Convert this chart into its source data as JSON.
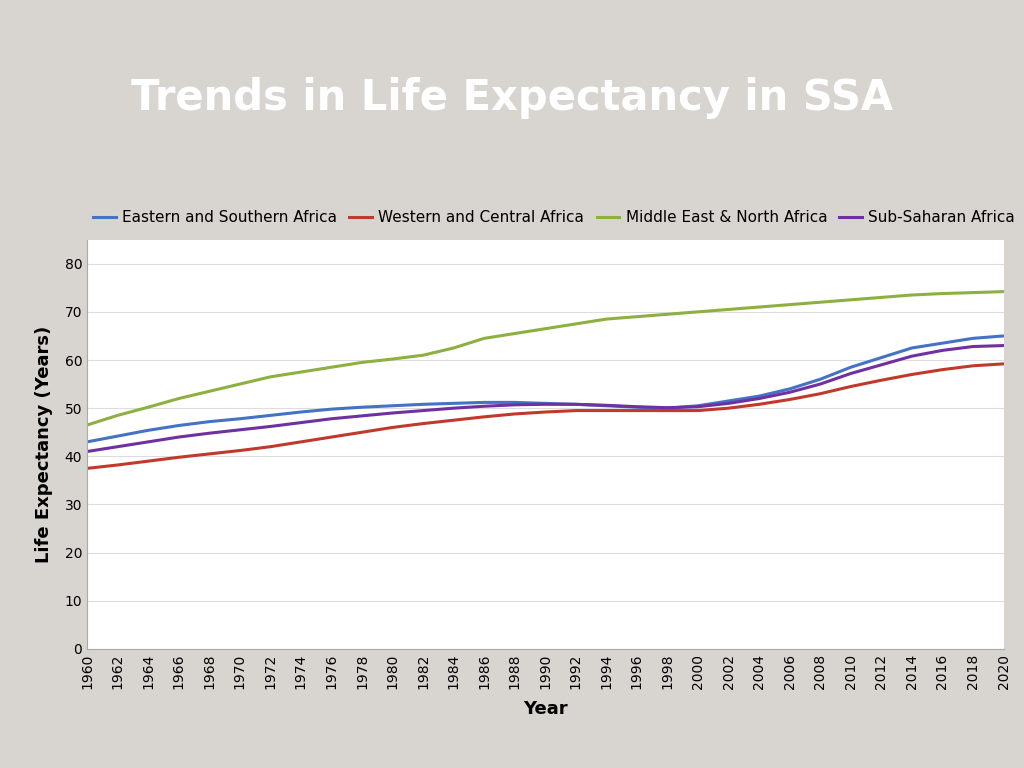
{
  "title": "Trends in Life Expectancy in SSA",
  "title_color": "#FFFFFF",
  "title_bg_color": "#080870",
  "header_border_color": "#B8960C",
  "outer_bg_color": "#D8D5D0",
  "chart_bg_color": "#F5F4F2",
  "plot_bg_color": "#FFFFFF",
  "xlabel": "Year",
  "ylabel": "Life Expectancy (Years)",
  "years": [
    1960,
    1962,
    1964,
    1966,
    1968,
    1970,
    1972,
    1974,
    1976,
    1978,
    1980,
    1982,
    1984,
    1986,
    1988,
    1990,
    1992,
    1994,
    1996,
    1998,
    2000,
    2002,
    2004,
    2006,
    2008,
    2010,
    2012,
    2014,
    2016,
    2018,
    2020
  ],
  "series": {
    "Eastern and Southern Africa": {
      "color": "#4472C4",
      "values": [
        43.0,
        44.2,
        45.4,
        46.4,
        47.2,
        47.8,
        48.5,
        49.2,
        49.8,
        50.2,
        50.5,
        50.8,
        51.0,
        51.2,
        51.2,
        51.0,
        50.8,
        50.5,
        50.2,
        50.0,
        50.5,
        51.5,
        52.5,
        54.0,
        56.0,
        58.5,
        60.5,
        62.5,
        63.5,
        64.5,
        65.0
      ]
    },
    "Western and Central Africa": {
      "color": "#C0392B",
      "values": [
        37.5,
        38.2,
        39.0,
        39.8,
        40.5,
        41.2,
        42.0,
        43.0,
        44.0,
        45.0,
        46.0,
        46.8,
        47.5,
        48.2,
        48.8,
        49.2,
        49.5,
        49.5,
        49.5,
        49.5,
        49.5,
        50.0,
        50.8,
        51.8,
        53.0,
        54.5,
        55.8,
        57.0,
        58.0,
        58.8,
        59.2
      ]
    },
    "Middle East & North Africa": {
      "color": "#8DB040",
      "values": [
        46.5,
        48.5,
        50.2,
        52.0,
        53.5,
        55.0,
        56.5,
        57.5,
        58.5,
        59.5,
        60.2,
        61.0,
        62.5,
        64.5,
        65.5,
        66.5,
        67.5,
        68.5,
        69.0,
        69.5,
        70.0,
        70.5,
        71.0,
        71.5,
        72.0,
        72.5,
        73.0,
        73.5,
        73.8,
        74.0,
        74.2
      ]
    },
    "Sub-Saharan Africa": {
      "color": "#7030A0",
      "values": [
        41.0,
        42.0,
        43.0,
        44.0,
        44.8,
        45.5,
        46.2,
        47.0,
        47.8,
        48.4,
        49.0,
        49.5,
        50.0,
        50.4,
        50.7,
        50.8,
        50.8,
        50.6,
        50.3,
        50.1,
        50.3,
        51.0,
        52.0,
        53.3,
        55.0,
        57.2,
        59.0,
        60.8,
        62.0,
        62.8,
        63.0
      ]
    }
  },
  "ylim": [
    0,
    85
  ],
  "yticks": [
    0,
    10,
    20,
    30,
    40,
    50,
    60,
    70,
    80
  ],
  "title_fontsize": 30,
  "axis_label_fontsize": 13,
  "tick_fontsize": 10,
  "legend_fontsize": 11,
  "linewidth": 2.2
}
